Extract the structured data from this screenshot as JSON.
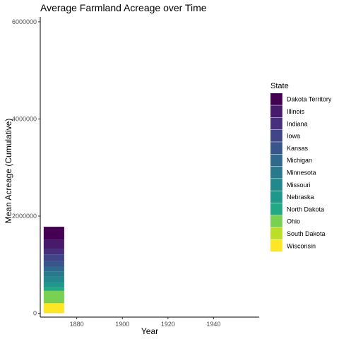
{
  "chart_data": {
    "type": "bar",
    "stacked": true,
    "title": "Average Farmland Acreage over Time",
    "xlabel": "Year",
    "ylabel": "Mean Acreage (Cumulative)",
    "xlim": [
      1864,
      1960
    ],
    "ylim": [
      -80000,
      6100000
    ],
    "x_ticks": [
      1880,
      1900,
      1920,
      1940
    ],
    "x_tick_labels": [
      "1880",
      "1900",
      "1920",
      "1940"
    ],
    "y_ticks": [
      0,
      2000000,
      4000000,
      6000000
    ],
    "y_tick_labels": [
      "0",
      "2000000",
      "4000000",
      "6000000"
    ],
    "grid": false,
    "legend_title": "State",
    "legend_position": "right",
    "bar_x": 1870,
    "bar_width": 9,
    "series": [
      {
        "name": "Dakota Territory",
        "color": "#440154",
        "value": 270000
      },
      {
        "name": "Illinois",
        "color": "#481A6C",
        "value": 180000
      },
      {
        "name": "Indiana",
        "color": "#472F7D",
        "value": 120000
      },
      {
        "name": "Iowa",
        "color": "#414487",
        "value": 140000
      },
      {
        "name": "Kansas",
        "color": "#39568C",
        "value": 110000
      },
      {
        "name": "Michigan",
        "color": "#31688E",
        "value": 100000
      },
      {
        "name": "Minnesota",
        "color": "#2A788E",
        "value": 110000
      },
      {
        "name": "Missouri",
        "color": "#23888E",
        "value": 130000
      },
      {
        "name": "Nebraska",
        "color": "#1F988B",
        "value": 100000
      },
      {
        "name": "North Dakota",
        "color": "#22A884",
        "value": 60000
      },
      {
        "name": "Ohio",
        "color": "#7AD151",
        "value": 250000
      },
      {
        "name": "South Dakota",
        "color": "#BBDF27",
        "value": 10000
      },
      {
        "name": "Wisconsin",
        "color": "#FDE725",
        "value": 200000
      }
    ]
  }
}
